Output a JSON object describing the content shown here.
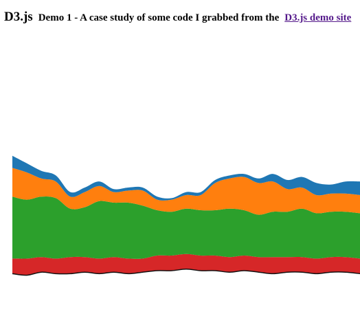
{
  "header": {
    "brand": "D3.js",
    "subtitle": "Demo 1 - A case study of some code I grabbed from the",
    "link_label": "D3.js demo site"
  },
  "chart_data": {
    "type": "area",
    "stacked": true,
    "offset": "wiggle",
    "title": "",
    "xlabel": "",
    "ylabel": "",
    "xlim": [
      0,
      24
    ],
    "ylim": [
      0,
      100
    ],
    "grid": false,
    "legend": "none",
    "x": [
      0,
      1,
      2,
      3,
      4,
      5,
      6,
      7,
      8,
      9,
      10,
      11,
      12,
      13,
      14,
      15,
      16,
      17,
      18,
      19,
      20,
      21,
      22,
      23,
      24
    ],
    "baseline": [
      3,
      2,
      4,
      3,
      3,
      4,
      3,
      4,
      3,
      4,
      5,
      5,
      6,
      5,
      5,
      4,
      5,
      4,
      3,
      4,
      4,
      3,
      4,
      4,
      3
    ],
    "series": [
      {
        "color": "#d62728",
        "values": [
          10,
          11,
          10,
          10,
          11,
          10,
          10,
          10,
          10,
          9,
          10,
          10,
          10,
          10,
          10,
          10,
          10,
          10,
          11,
          10,
          10,
          10,
          10,
          10,
          10
        ]
      },
      {
        "color": "#2ca02c",
        "values": [
          41,
          39,
          40,
          40,
          32,
          33,
          38,
          36,
          37,
          35,
          30,
          29,
          30,
          30,
          30,
          32,
          30,
          28,
          30,
          30,
          32,
          30,
          30,
          30,
          30
        ]
      },
      {
        "color": "#ff7f0e",
        "values": [
          19,
          18,
          12,
          11,
          8,
          10,
          10,
          7,
          8,
          10,
          7,
          8,
          9,
          10,
          18,
          20,
          22,
          21,
          20,
          15,
          14,
          12,
          12,
          12,
          12
        ]
      },
      {
        "color": "#1f77b4",
        "values": [
          8,
          6,
          5,
          4,
          3,
          3,
          3,
          2,
          2,
          2,
          2,
          1,
          2,
          2,
          2,
          2,
          2,
          3,
          5,
          6,
          7,
          8,
          6,
          8,
          9
        ]
      }
    ]
  }
}
